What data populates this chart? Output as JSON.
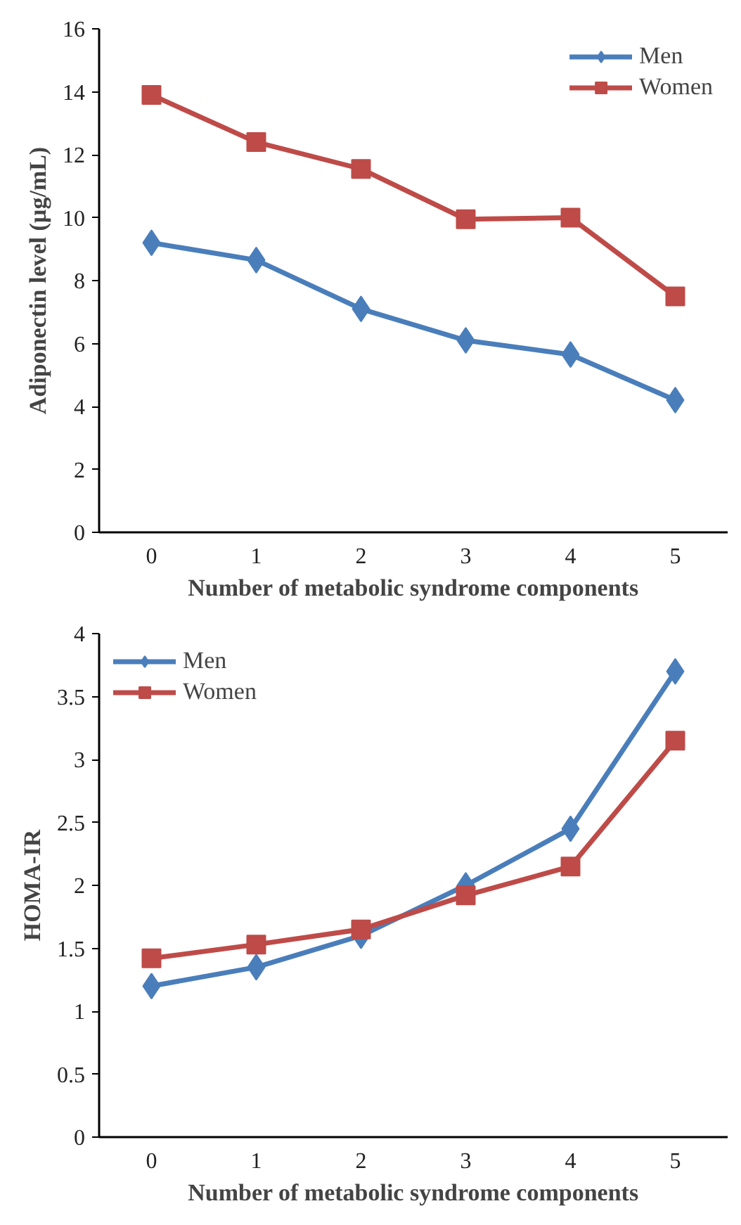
{
  "chart_data": [
    {
      "type": "line",
      "categories": [
        "0",
        "1",
        "2",
        "3",
        "4",
        "5"
      ],
      "xlabel": "Number of metabolic syndrome components",
      "ylabel": "Adiponectin level (µg/mL)",
      "ylim": [
        0,
        16
      ],
      "yticks": [
        0,
        2,
        4,
        6,
        8,
        10,
        12,
        14,
        16
      ],
      "grid": false,
      "legend": "top right",
      "series": [
        {
          "name": "Men",
          "color": "#4a7ebb",
          "marker": "diamond",
          "values": [
            9.2,
            8.65,
            7.1,
            6.1,
            5.65,
            4.2
          ]
        },
        {
          "name": "Women",
          "color": "#be4b48",
          "marker": "square",
          "values": [
            13.9,
            12.4,
            11.55,
            9.95,
            10.0,
            7.5
          ]
        }
      ]
    },
    {
      "type": "line",
      "categories": [
        "0",
        "1",
        "2",
        "3",
        "4",
        "5"
      ],
      "xlabel": "Number of metabolic syndrome components",
      "ylabel": "HOMA-IR",
      "ylim": [
        0,
        4
      ],
      "yticks": [
        0,
        0.5,
        1,
        1.5,
        2,
        2.5,
        3,
        3.5,
        4
      ],
      "grid": false,
      "legend": "top left",
      "series": [
        {
          "name": "Men",
          "color": "#4a7ebb",
          "marker": "diamond",
          "values": [
            1.2,
            1.35,
            1.6,
            2.0,
            2.45,
            3.7
          ]
        },
        {
          "name": "Women",
          "color": "#be4b48",
          "marker": "square",
          "values": [
            1.42,
            1.53,
            1.65,
            1.92,
            2.15,
            3.15
          ]
        }
      ]
    }
  ]
}
